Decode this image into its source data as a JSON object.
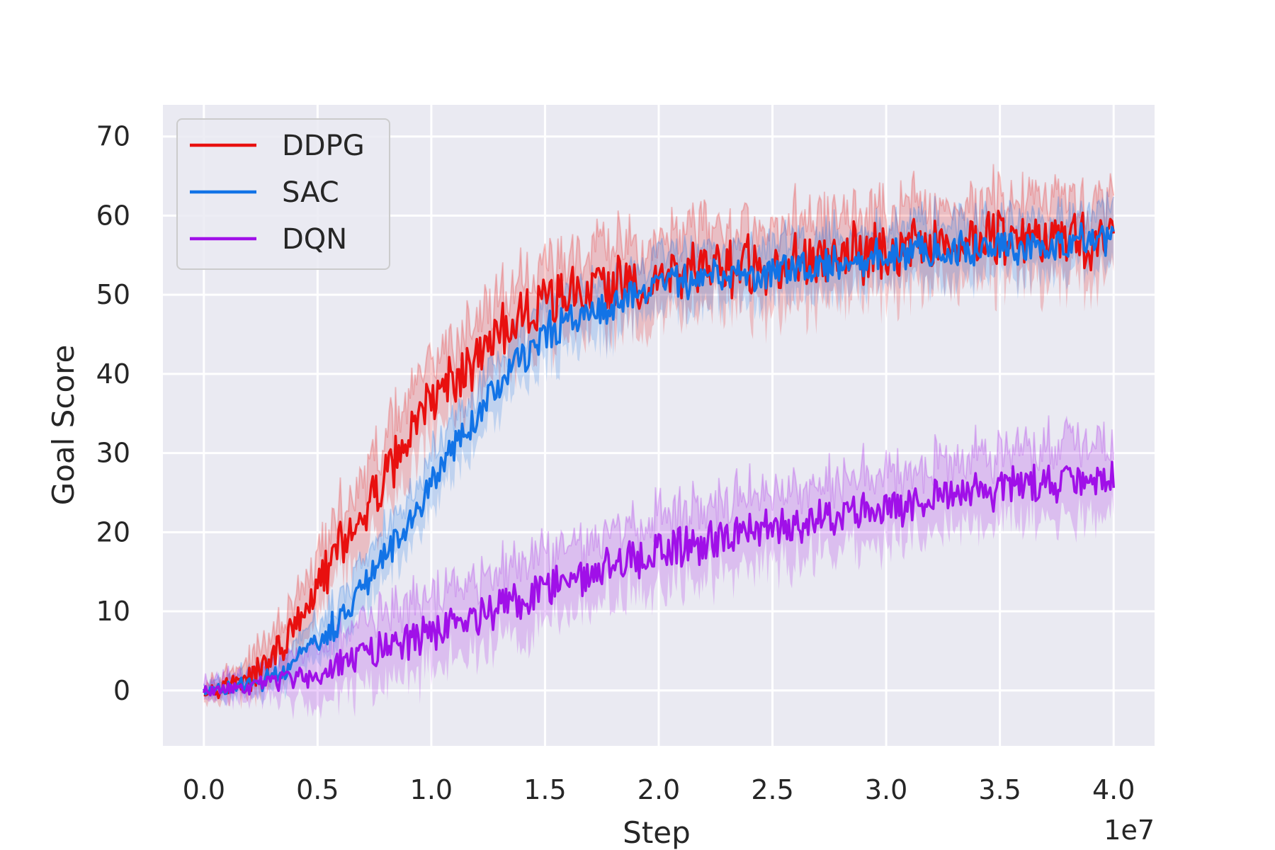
{
  "chart_data": {
    "type": "line",
    "title": "",
    "xlabel": "Step",
    "ylabel": "Goal Score",
    "x_offset_label": "1e7",
    "x_scale_factor": 10000000,
    "xlim": [
      -0.18,
      4.18
    ],
    "ylim": [
      -7,
      74
    ],
    "xticks": [
      0.0,
      0.5,
      1.0,
      1.5,
      2.0,
      2.5,
      3.0,
      3.5,
      4.0
    ],
    "xtick_labels": [
      "0.0",
      "0.5",
      "1.0",
      "1.5",
      "2.0",
      "2.5",
      "3.0",
      "3.5",
      "4.0"
    ],
    "yticks": [
      0,
      10,
      20,
      30,
      40,
      50,
      60,
      70
    ],
    "ytick_labels": [
      "0",
      "10",
      "20",
      "30",
      "40",
      "50",
      "60",
      "70"
    ],
    "grid": true,
    "background": "#eaeaf2",
    "legend_position": "upper-left",
    "series": [
      {
        "name": "DDPG",
        "color": "#e8100f",
        "noise": 3.2,
        "band_noise": 4.2,
        "x": [
          0.0,
          0.1,
          0.2,
          0.3,
          0.4,
          0.5,
          0.6,
          0.7,
          0.8,
          0.9,
          1.0,
          1.1,
          1.2,
          1.3,
          1.4,
          1.5,
          1.6,
          1.8,
          2.0,
          2.2,
          2.5,
          2.8,
          3.0,
          3.2,
          3.5,
          3.8,
          4.0
        ],
        "y": [
          0,
          0.5,
          1.5,
          4,
          8,
          13,
          18,
          22,
          27,
          32,
          36,
          39,
          42,
          45,
          47,
          49,
          50,
          51,
          52,
          53,
          54,
          55,
          55.5,
          56,
          57,
          57,
          57
        ]
      },
      {
        "name": "SAC",
        "color": "#1273e6",
        "noise": 2.0,
        "band_noise": 3.0,
        "x": [
          0.0,
          0.1,
          0.2,
          0.3,
          0.4,
          0.5,
          0.6,
          0.7,
          0.8,
          0.9,
          1.0,
          1.1,
          1.2,
          1.3,
          1.4,
          1.5,
          1.6,
          1.8,
          2.0,
          2.2,
          2.5,
          2.8,
          3.0,
          3.2,
          3.5,
          3.8,
          4.0
        ],
        "y": [
          0,
          0.3,
          0.8,
          1.5,
          3.5,
          6,
          9,
          13,
          17,
          21,
          26,
          31,
          35,
          39,
          42,
          45,
          47,
          49,
          51,
          52,
          53,
          54,
          55,
          55.5,
          56,
          56.5,
          57
        ]
      },
      {
        "name": "DQN",
        "color": "#a010e8",
        "noise": 2.2,
        "band_noise": 4.0,
        "x": [
          0.0,
          0.2,
          0.4,
          0.6,
          0.8,
          1.0,
          1.2,
          1.4,
          1.6,
          1.8,
          2.0,
          2.2,
          2.4,
          2.6,
          2.8,
          3.0,
          3.2,
          3.4,
          3.6,
          3.8,
          4.0
        ],
        "y": [
          0,
          0.3,
          1.5,
          3.5,
          5.5,
          7.5,
          9.5,
          11.5,
          14,
          16,
          17.5,
          18.5,
          20,
          21,
          22,
          23,
          24,
          25,
          26,
          26.5,
          27
        ]
      }
    ]
  }
}
